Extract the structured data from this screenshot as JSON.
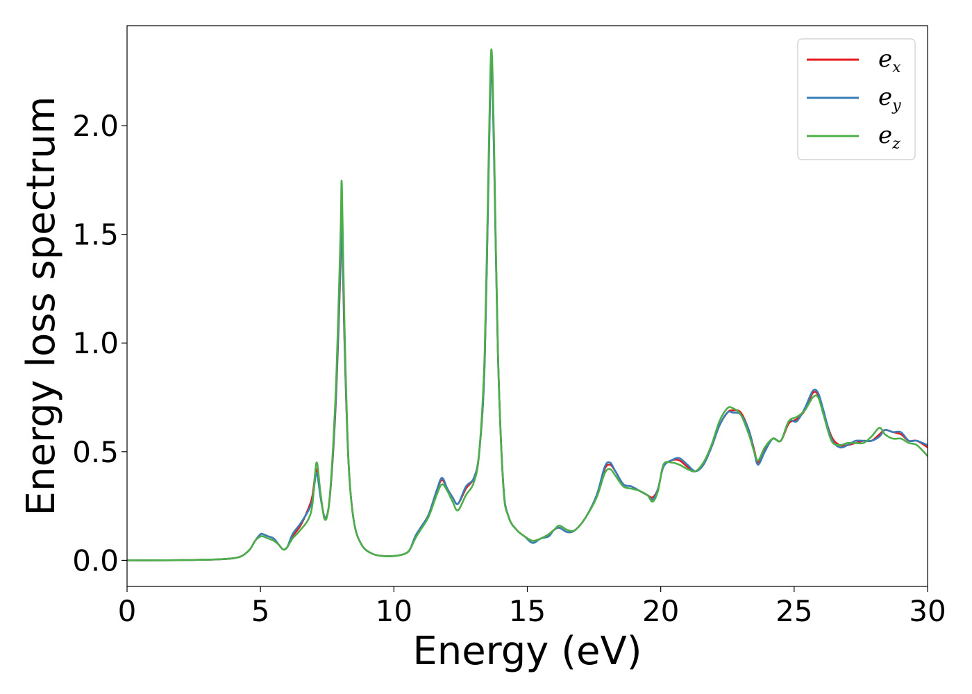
{
  "chart_data": {
    "type": "line",
    "xlabel": "Energy (eV)",
    "ylabel": "Energy loss spectrum",
    "xlim": [
      0,
      30
    ],
    "ylim": [
      -0.12,
      2.46
    ],
    "xticks": [
      0,
      5,
      10,
      15,
      20,
      25,
      30
    ],
    "xtick_labels": [
      "0",
      "5",
      "10",
      "15",
      "20",
      "25",
      "30"
    ],
    "yticks": [
      0.0,
      0.5,
      1.0,
      1.5,
      2.0
    ],
    "ytick_labels": [
      "0.0",
      "0.5",
      "1.0",
      "1.5",
      "2.0"
    ],
    "grid": false,
    "legend_position": "top-right",
    "series": [
      {
        "name": "e",
        "subscript": "x",
        "color": "#e41a1c",
        "x": [
          0,
          1,
          2,
          3,
          3.5,
          4,
          4.3,
          4.6,
          4.8,
          5.0,
          5.1,
          5.3,
          5.5,
          5.7,
          5.85,
          6.0,
          6.2,
          6.5,
          6.8,
          6.95,
          7.1,
          7.25,
          7.4,
          7.55,
          7.7,
          7.85,
          8.0,
          8.05,
          8.15,
          8.3,
          8.5,
          8.8,
          9.2,
          9.6,
          10.0,
          10.4,
          10.6,
          10.8,
          11.0,
          11.3,
          11.6,
          11.8,
          12.0,
          12.2,
          12.4,
          12.7,
          13.0,
          13.2,
          13.4,
          13.55,
          13.65,
          13.75,
          13.9,
          14.1,
          14.3,
          14.6,
          14.9,
          15.2,
          15.5,
          15.8,
          16.0,
          16.2,
          16.5,
          16.8,
          17.2,
          17.6,
          17.9,
          18.1,
          18.3,
          18.6,
          18.9,
          19.2,
          19.5,
          19.7,
          19.9,
          20.1,
          20.4,
          20.7,
          21.0,
          21.3,
          21.6,
          21.9,
          22.2,
          22.5,
          22.7,
          23.0,
          23.3,
          23.5,
          23.65,
          23.9,
          24.2,
          24.5,
          24.8,
          25.1,
          25.4,
          25.7,
          25.9,
          26.1,
          26.4,
          26.7,
          27.0,
          27.3,
          27.6,
          27.9,
          28.2,
          28.4,
          28.7,
          29.0,
          29.3,
          29.6,
          30.0
        ],
        "y": [
          0.0,
          0.0,
          0.001,
          0.003,
          0.005,
          0.01,
          0.02,
          0.05,
          0.09,
          0.12,
          0.12,
          0.11,
          0.1,
          0.07,
          0.05,
          0.06,
          0.11,
          0.16,
          0.24,
          0.3,
          0.42,
          0.3,
          0.2,
          0.24,
          0.45,
          0.8,
          1.35,
          1.56,
          1.0,
          0.45,
          0.18,
          0.07,
          0.03,
          0.02,
          0.02,
          0.03,
          0.05,
          0.11,
          0.15,
          0.21,
          0.32,
          0.37,
          0.33,
          0.29,
          0.26,
          0.33,
          0.38,
          0.5,
          0.9,
          1.8,
          2.3,
          1.9,
          0.95,
          0.35,
          0.2,
          0.14,
          0.11,
          0.09,
          0.1,
          0.12,
          0.14,
          0.15,
          0.13,
          0.14,
          0.2,
          0.3,
          0.42,
          0.44,
          0.41,
          0.35,
          0.34,
          0.32,
          0.3,
          0.29,
          0.33,
          0.43,
          0.46,
          0.46,
          0.43,
          0.41,
          0.44,
          0.52,
          0.62,
          0.68,
          0.69,
          0.68,
          0.6,
          0.51,
          0.45,
          0.51,
          0.56,
          0.55,
          0.63,
          0.65,
          0.69,
          0.77,
          0.76,
          0.68,
          0.57,
          0.53,
          0.53,
          0.54,
          0.55,
          0.55,
          0.58,
          0.6,
          0.59,
          0.58,
          0.55,
          0.55,
          0.52
        ]
      },
      {
        "name": "e",
        "subscript": "y",
        "color": "#377eb8",
        "x": [
          0,
          1,
          2,
          3,
          3.5,
          4,
          4.3,
          4.6,
          4.8,
          5.0,
          5.1,
          5.3,
          5.5,
          5.7,
          5.85,
          6.0,
          6.2,
          6.5,
          6.8,
          6.95,
          7.1,
          7.25,
          7.4,
          7.55,
          7.7,
          7.85,
          8.0,
          8.05,
          8.15,
          8.3,
          8.5,
          8.8,
          9.2,
          9.6,
          10.0,
          10.4,
          10.6,
          10.8,
          11.0,
          11.3,
          11.6,
          11.8,
          12.0,
          12.2,
          12.4,
          12.7,
          13.0,
          13.2,
          13.4,
          13.55,
          13.65,
          13.75,
          13.9,
          14.1,
          14.3,
          14.6,
          14.9,
          15.2,
          15.5,
          15.8,
          16.0,
          16.2,
          16.5,
          16.8,
          17.2,
          17.6,
          17.9,
          18.1,
          18.3,
          18.6,
          18.9,
          19.2,
          19.5,
          19.7,
          19.9,
          20.1,
          20.4,
          20.7,
          21.0,
          21.3,
          21.6,
          21.9,
          22.2,
          22.5,
          22.7,
          23.0,
          23.3,
          23.5,
          23.65,
          23.9,
          24.2,
          24.5,
          24.8,
          25.1,
          25.4,
          25.7,
          25.9,
          26.1,
          26.4,
          26.7,
          27.0,
          27.3,
          27.6,
          27.9,
          28.2,
          28.4,
          28.7,
          29.0,
          29.3,
          29.6,
          30.0
        ],
        "y": [
          0.0,
          0.0,
          0.001,
          0.003,
          0.005,
          0.01,
          0.02,
          0.05,
          0.09,
          0.12,
          0.12,
          0.11,
          0.1,
          0.07,
          0.05,
          0.06,
          0.12,
          0.17,
          0.23,
          0.28,
          0.4,
          0.29,
          0.2,
          0.24,
          0.46,
          0.82,
          1.38,
          1.6,
          1.02,
          0.45,
          0.18,
          0.07,
          0.03,
          0.02,
          0.02,
          0.03,
          0.05,
          0.11,
          0.15,
          0.21,
          0.32,
          0.38,
          0.33,
          0.29,
          0.26,
          0.34,
          0.38,
          0.5,
          0.9,
          1.78,
          2.28,
          1.88,
          0.94,
          0.35,
          0.2,
          0.14,
          0.11,
          0.08,
          0.1,
          0.11,
          0.14,
          0.15,
          0.13,
          0.14,
          0.2,
          0.3,
          0.43,
          0.45,
          0.41,
          0.35,
          0.34,
          0.32,
          0.3,
          0.28,
          0.33,
          0.43,
          0.46,
          0.47,
          0.44,
          0.41,
          0.44,
          0.52,
          0.62,
          0.68,
          0.68,
          0.67,
          0.6,
          0.5,
          0.44,
          0.5,
          0.56,
          0.55,
          0.64,
          0.64,
          0.7,
          0.78,
          0.77,
          0.69,
          0.56,
          0.52,
          0.53,
          0.55,
          0.55,
          0.55,
          0.57,
          0.6,
          0.59,
          0.59,
          0.55,
          0.55,
          0.53
        ]
      },
      {
        "name": "e",
        "subscript": "z",
        "color": "#4daf4a",
        "x": [
          0,
          1,
          2,
          3,
          3.5,
          4,
          4.3,
          4.6,
          4.8,
          5.0,
          5.1,
          5.3,
          5.5,
          5.7,
          5.85,
          6.0,
          6.2,
          6.5,
          6.8,
          6.95,
          7.1,
          7.25,
          7.4,
          7.55,
          7.7,
          7.85,
          8.0,
          8.05,
          8.15,
          8.3,
          8.5,
          8.8,
          9.2,
          9.6,
          10.0,
          10.4,
          10.6,
          10.8,
          11.0,
          11.3,
          11.6,
          11.8,
          12.0,
          12.2,
          12.4,
          12.7,
          13.0,
          13.2,
          13.4,
          13.55,
          13.65,
          13.75,
          13.9,
          14.1,
          14.3,
          14.6,
          14.9,
          15.2,
          15.5,
          15.8,
          16.0,
          16.2,
          16.5,
          16.8,
          17.2,
          17.6,
          17.9,
          18.1,
          18.3,
          18.6,
          18.9,
          19.2,
          19.5,
          19.7,
          19.9,
          20.1,
          20.4,
          20.7,
          21.0,
          21.3,
          21.6,
          21.9,
          22.2,
          22.5,
          22.7,
          23.0,
          23.3,
          23.5,
          23.65,
          23.9,
          24.2,
          24.5,
          24.8,
          25.1,
          25.4,
          25.7,
          25.9,
          26.1,
          26.4,
          26.7,
          27.0,
          27.3,
          27.6,
          27.9,
          28.2,
          28.4,
          28.7,
          29.0,
          29.3,
          29.6,
          30.0
        ],
        "y": [
          0.0,
          0.0,
          0.001,
          0.003,
          0.005,
          0.01,
          0.02,
          0.05,
          0.09,
          0.11,
          0.11,
          0.1,
          0.09,
          0.07,
          0.05,
          0.06,
          0.1,
          0.14,
          0.19,
          0.26,
          0.45,
          0.31,
          0.19,
          0.24,
          0.48,
          0.87,
          1.5,
          1.73,
          1.08,
          0.46,
          0.18,
          0.07,
          0.03,
          0.02,
          0.02,
          0.03,
          0.05,
          0.1,
          0.14,
          0.2,
          0.3,
          0.35,
          0.32,
          0.27,
          0.23,
          0.3,
          0.36,
          0.5,
          0.95,
          1.85,
          2.35,
          1.95,
          0.96,
          0.34,
          0.2,
          0.14,
          0.11,
          0.09,
          0.1,
          0.12,
          0.14,
          0.16,
          0.14,
          0.14,
          0.2,
          0.29,
          0.4,
          0.42,
          0.39,
          0.34,
          0.33,
          0.32,
          0.3,
          0.27,
          0.32,
          0.44,
          0.45,
          0.44,
          0.42,
          0.41,
          0.45,
          0.53,
          0.64,
          0.7,
          0.7,
          0.67,
          0.58,
          0.5,
          0.46,
          0.52,
          0.56,
          0.55,
          0.64,
          0.66,
          0.69,
          0.75,
          0.75,
          0.67,
          0.55,
          0.53,
          0.54,
          0.54,
          0.54,
          0.57,
          0.61,
          0.58,
          0.56,
          0.56,
          0.54,
          0.53,
          0.48
        ]
      }
    ]
  }
}
